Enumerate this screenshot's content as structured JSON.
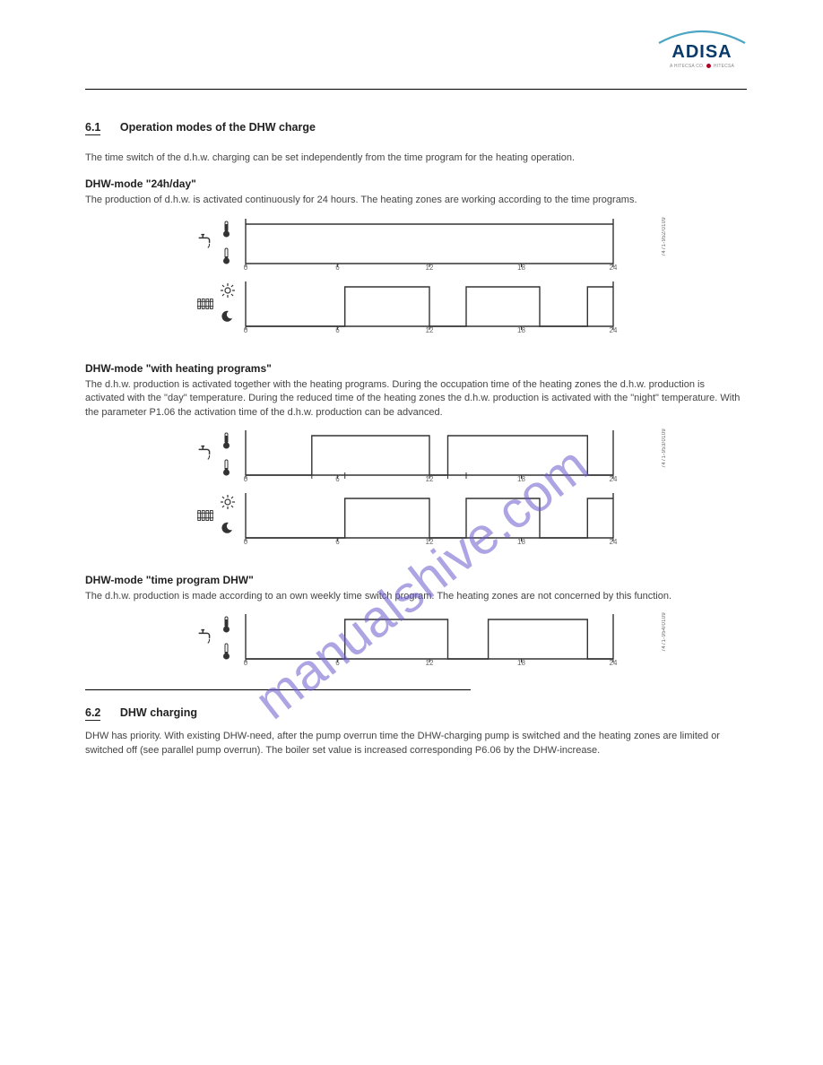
{
  "logo": {
    "name": "ADISA",
    "sub_prefix": "A HITECSA CO.",
    "sub_brand": "HITECSA"
  },
  "section": {
    "number": "6.1",
    "title": "Operation modes of the DHW charge"
  },
  "intro": "The time switch of the d.h.w. charging can be set independently from the time program for the heating operation.",
  "mode1": {
    "title": "DHW-mode \"24h/day\"",
    "text": "The production of d.h.w. is activated continuously for 24 hours. The heating zones are working according to the time programs."
  },
  "mode2": {
    "title": "DHW-mode \"with heating programs\"",
    "text": "The d.h.w. production is activated together with the heating programs. During the occupation time of the heating zones the d.h.w. production is activated with the \"day\" temperature. During the reduced time of the heating zones the d.h.w. production is activated with the \"night\" temperature. With the parameter P1.06 the activation time of the d.h.w. production can be advanced."
  },
  "mode3": {
    "title": "DHW-mode \"time program DHW\"",
    "text": "The d.h.w. production is made according to an own weekly time switch program. The heating zones are not concerned by this function."
  },
  "footer_num": "6.2",
  "footer_title": "DHW charging",
  "footer": "DHW has priority. With existing DHW-need, after the pump overrun time the DHW-charging pump is switched and the heating zones are limited or switched off (see parallel pump overrun). The boiler set value is increased corresponding P6.06 by the DHW-increase.",
  "charts": {
    "axis_width": 410,
    "axis_height": 48,
    "line_color": "#333333",
    "line_width": 1.4,
    "tick_labels": [
      "0",
      "6",
      "12",
      "18",
      "24"
    ],
    "tick_positions": [
      0,
      0.25,
      0.5,
      0.75,
      1.0
    ],
    "tick_fontsize": 8,
    "tick_color": "#666666",
    "background": "#ffffff",
    "side_codes": [
      "7471-952/0109",
      "7471-953/0109",
      "7471-954/0109"
    ],
    "d1_dhw": {
      "levels": [
        1,
        1
      ],
      "edges": [
        0,
        1
      ]
    },
    "d1_heat": {
      "levels": [
        0,
        1,
        0,
        1,
        0,
        1
      ],
      "edges": [
        0,
        0.27,
        0.5,
        0.6,
        0.8,
        0.93,
        1.0
      ]
    },
    "d2_dhw": {
      "levels": [
        0,
        1,
        0,
        1,
        0
      ],
      "edges": [
        0,
        0.18,
        0.5,
        0.55,
        0.93,
        1.0
      ]
    },
    "d2_heat": {
      "levels": [
        0,
        1,
        0,
        1,
        0,
        1
      ],
      "edges": [
        0,
        0.27,
        0.5,
        0.6,
        0.8,
        0.93,
        1.0
      ]
    },
    "d2_advance_marks": [
      0.18,
      0.27,
      0.55,
      0.6
    ],
    "d3_dhw": {
      "levels": [
        0,
        1,
        0,
        1,
        0
      ],
      "edges": [
        0,
        0.27,
        0.55,
        0.66,
        0.93,
        1.0
      ]
    }
  },
  "watermark": {
    "text": "manualshive.com",
    "color": "#6a5acd",
    "opacity": 0.55,
    "fontsize": 58,
    "angle": -38
  }
}
